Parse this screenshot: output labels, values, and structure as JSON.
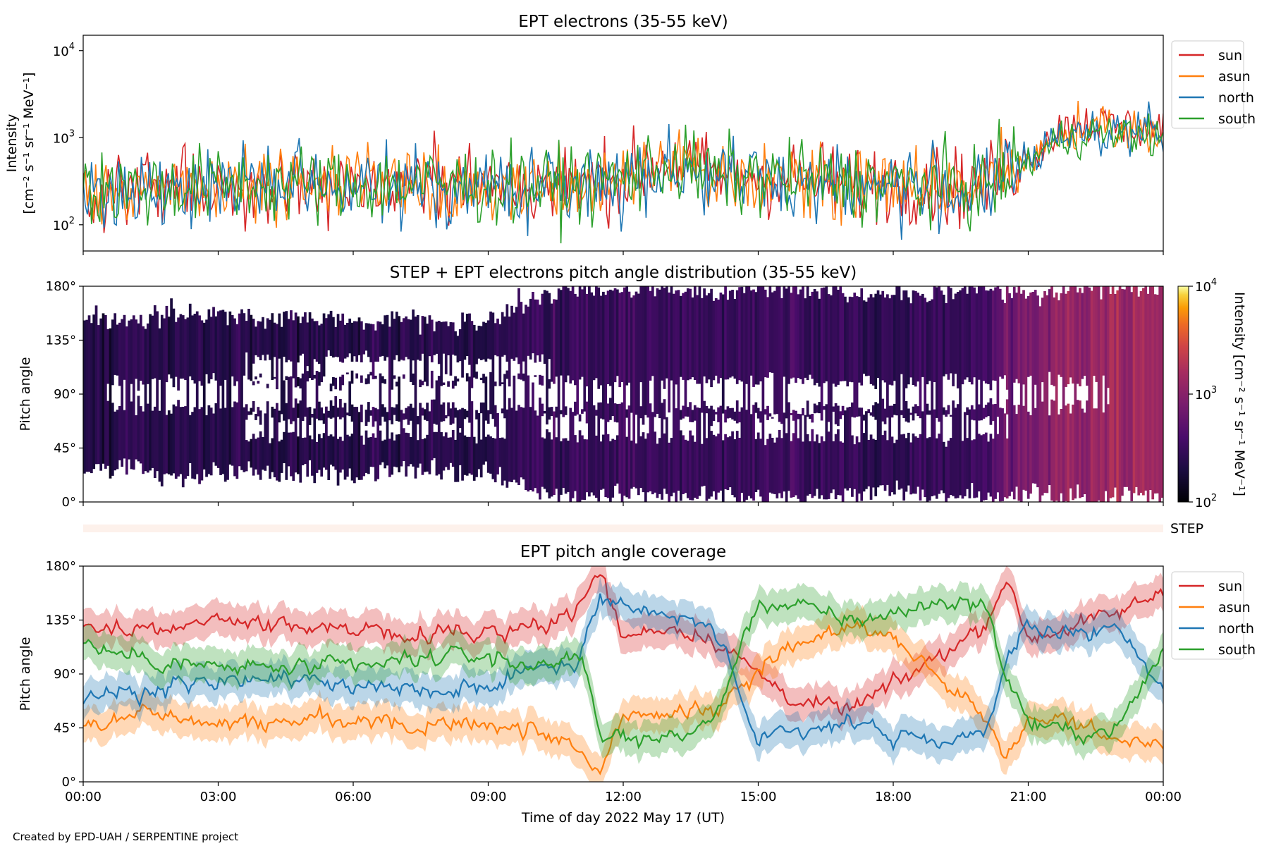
{
  "chart_data": [
    {
      "id": "intensity",
      "type": "line",
      "title": "EPT electrons (35-55 keV)",
      "ylabel_line1": "Intensity",
      "ylabel_line2": "[cm⁻² s⁻¹ sr⁻¹ MeV⁻¹]",
      "yscale": "log",
      "ylim": [
        50,
        15000
      ],
      "y_ticks": [
        {
          "value": 100,
          "base": "10",
          "exp": "2"
        },
        {
          "value": 1000,
          "base": "10",
          "exp": "3"
        },
        {
          "value": 10000,
          "base": "10",
          "exp": "4"
        }
      ],
      "xlim_hours": [
        0,
        24
      ],
      "legend_position": "outside-right",
      "series": [
        {
          "name": "sun",
          "color": "#d62728",
          "x_hours": [
            0,
            1,
            2,
            3,
            4,
            5,
            6,
            7,
            8,
            9,
            10,
            11,
            12,
            13,
            14,
            15,
            16,
            17,
            18,
            19,
            20,
            21,
            22,
            23,
            24
          ],
          "values": [
            260,
            250,
            260,
            280,
            300,
            290,
            280,
            290,
            300,
            290,
            280,
            300,
            350,
            560,
            380,
            360,
            330,
            310,
            300,
            280,
            270,
            560,
            1500,
            1350,
            1250
          ]
        },
        {
          "name": "asun",
          "color": "#ff7f0e",
          "x_hours": [
            0,
            1,
            2,
            3,
            4,
            5,
            6,
            7,
            8,
            9,
            10,
            11,
            12,
            13,
            14,
            15,
            16,
            17,
            18,
            19,
            20,
            21,
            22,
            23,
            24
          ],
          "values": [
            250,
            240,
            250,
            260,
            280,
            270,
            270,
            280,
            280,
            270,
            270,
            290,
            330,
            480,
            350,
            340,
            320,
            300,
            290,
            270,
            260,
            500,
            1300,
            1150,
            1050
          ]
        },
        {
          "name": "north",
          "color": "#1f77b4",
          "x_hours": [
            0,
            1,
            2,
            3,
            4,
            5,
            6,
            7,
            8,
            9,
            10,
            11,
            12,
            13,
            14,
            15,
            16,
            17,
            18,
            19,
            20,
            21,
            22,
            23,
            24
          ],
          "values": [
            240,
            235,
            245,
            255,
            270,
            265,
            265,
            270,
            275,
            265,
            260,
            280,
            320,
            450,
            340,
            330,
            310,
            290,
            280,
            260,
            250,
            480,
            1250,
            1200,
            1150
          ]
        },
        {
          "name": "south",
          "color": "#2ca02c",
          "x_hours": [
            0,
            1,
            2,
            3,
            4,
            5,
            6,
            7,
            8,
            9,
            10,
            11,
            12,
            13,
            14,
            15,
            16,
            17,
            18,
            19,
            20,
            21,
            22,
            23,
            24
          ],
          "values": [
            270,
            260,
            265,
            285,
            300,
            290,
            285,
            295,
            300,
            285,
            275,
            295,
            340,
            500,
            360,
            350,
            320,
            300,
            290,
            275,
            265,
            520,
            1050,
            1100,
            1050
          ]
        }
      ]
    },
    {
      "id": "pad",
      "type": "heatmap",
      "title": "STEP + EPT electrons pitch angle distribution (35-55 keV)",
      "ylabel": "Pitch angle",
      "ylim": [
        0,
        180
      ],
      "y_ticks": [
        "0°",
        "45°",
        "90°",
        "135°",
        "180°"
      ],
      "colorbar": {
        "scale": "log",
        "range": [
          100,
          10000
        ],
        "ticks": [
          {
            "value": 100,
            "base": "10",
            "exp": "2"
          },
          {
            "value": 1000,
            "base": "10",
            "exp": "3"
          },
          {
            "value": 10000,
            "base": "10",
            "exp": "4"
          }
        ],
        "label": "Intensity [cm⁻² s⁻¹ sr⁻¹ MeV⁻¹]",
        "colormap": "inferno"
      },
      "x_hours": [
        0,
        1,
        2,
        3,
        4,
        5,
        6,
        7,
        8,
        9,
        10,
        11,
        12,
        13,
        14,
        15,
        16,
        17,
        18,
        19,
        20,
        21,
        22,
        23,
        24
      ],
      "coverage_lo": [
        25,
        28,
        22,
        24,
        26,
        25,
        24,
        28,
        26,
        24,
        8,
        5,
        6,
        3,
        8,
        2,
        6,
        4,
        8,
        6,
        3,
        8,
        2,
        4,
        3
      ],
      "coverage_hi": [
        155,
        150,
        158,
        156,
        152,
        154,
        150,
        152,
        150,
        150,
        170,
        178,
        175,
        180,
        172,
        180,
        178,
        176,
        172,
        175,
        180,
        172,
        178,
        180,
        178
      ],
      "gaps": [
        {
          "center": 112,
          "width": 16,
          "start": 3.6,
          "end": 10.4
        },
        {
          "center": 90,
          "width": 22,
          "start": 0.5,
          "end": 22.8
        },
        {
          "center": 62,
          "width": 14,
          "start": 3.6,
          "end": 9.4
        },
        {
          "center": 62,
          "width": 16,
          "start": 10.2,
          "end": 20.6
        }
      ],
      "intensity_hours": [
        0,
        3,
        6,
        9,
        10,
        12,
        15,
        18,
        20,
        21,
        22,
        23,
        24
      ],
      "intensity_values": [
        230,
        240,
        230,
        240,
        280,
        320,
        310,
        280,
        300,
        800,
        1200,
        1400,
        1300
      ]
    },
    {
      "id": "step",
      "type": "bar",
      "label": "STEP",
      "color": "#fdf1eb"
    },
    {
      "id": "coverage",
      "type": "line",
      "title": "EPT pitch angle coverage",
      "ylabel": "Pitch angle",
      "ylim": [
        0,
        180
      ],
      "y_ticks": [
        "0°",
        "45°",
        "90°",
        "135°",
        "180°"
      ],
      "xlabel": "Time of day 2022 May 17 (UT)",
      "x_ticks": [
        "00:00",
        "03:00",
        "06:00",
        "09:00",
        "12:00",
        "15:00",
        "18:00",
        "21:00",
        "00:00"
      ],
      "band_halfwidth": 14,
      "legend_position": "outside-right",
      "series": [
        {
          "name": "sun",
          "color": "#d62728",
          "x_hours": [
            0,
            1,
            2,
            3,
            4,
            5,
            6,
            7,
            8,
            9,
            10,
            11,
            11.5,
            12,
            13,
            14,
            15,
            16,
            17,
            18,
            19,
            20,
            20.5,
            21,
            22,
            23,
            24
          ],
          "values": [
            130,
            125,
            130,
            135,
            130,
            125,
            130,
            125,
            125,
            125,
            130,
            145,
            175,
            120,
            130,
            120,
            90,
            65,
            60,
            80,
            105,
            130,
            170,
            120,
            130,
            140,
            160
          ]
        },
        {
          "name": "asun",
          "color": "#ff7f0e",
          "x_hours": [
            0,
            1,
            2,
            3,
            4,
            5,
            6,
            7,
            8,
            9,
            10,
            11,
            11.5,
            12,
            13,
            14,
            15,
            16,
            17,
            18,
            19,
            20,
            20.5,
            21,
            22,
            23,
            24
          ],
          "values": [
            45,
            55,
            55,
            50,
            50,
            50,
            52,
            50,
            48,
            48,
            45,
            30,
            10,
            55,
            55,
            60,
            95,
            120,
            130,
            120,
            90,
            55,
            15,
            55,
            50,
            35,
            25
          ]
        },
        {
          "name": "north",
          "color": "#1f77b4",
          "x_hours": [
            0,
            1,
            2,
            3,
            4,
            5,
            6,
            7,
            8,
            9,
            10,
            11,
            11.5,
            12,
            13,
            14,
            15,
            16,
            17,
            18,
            19,
            20,
            20.5,
            21,
            22,
            23,
            24
          ],
          "values": [
            65,
            75,
            80,
            85,
            85,
            85,
            80,
            80,
            75,
            80,
            95,
            100,
            155,
            150,
            140,
            130,
            30,
            45,
            50,
            40,
            30,
            40,
            95,
            130,
            125,
            125,
            80
          ]
        },
        {
          "name": "south",
          "color": "#2ca02c",
          "x_hours": [
            0,
            1,
            2,
            3,
            4,
            5,
            6,
            7,
            8,
            9,
            10,
            11,
            11.5,
            12,
            13,
            14,
            15,
            16,
            17,
            18,
            19,
            20,
            20.5,
            21,
            22,
            23,
            24
          ],
          "values": [
            115,
            105,
            100,
            95,
            95,
            95,
            95,
            100,
            105,
            105,
            95,
            110,
            35,
            40,
            35,
            50,
            150,
            145,
            135,
            140,
            150,
            150,
            90,
            50,
            40,
            45,
            110
          ]
        }
      ]
    }
  ],
  "footer": {
    "credit": "Created by EPD-UAH / SERPENTINE project"
  }
}
